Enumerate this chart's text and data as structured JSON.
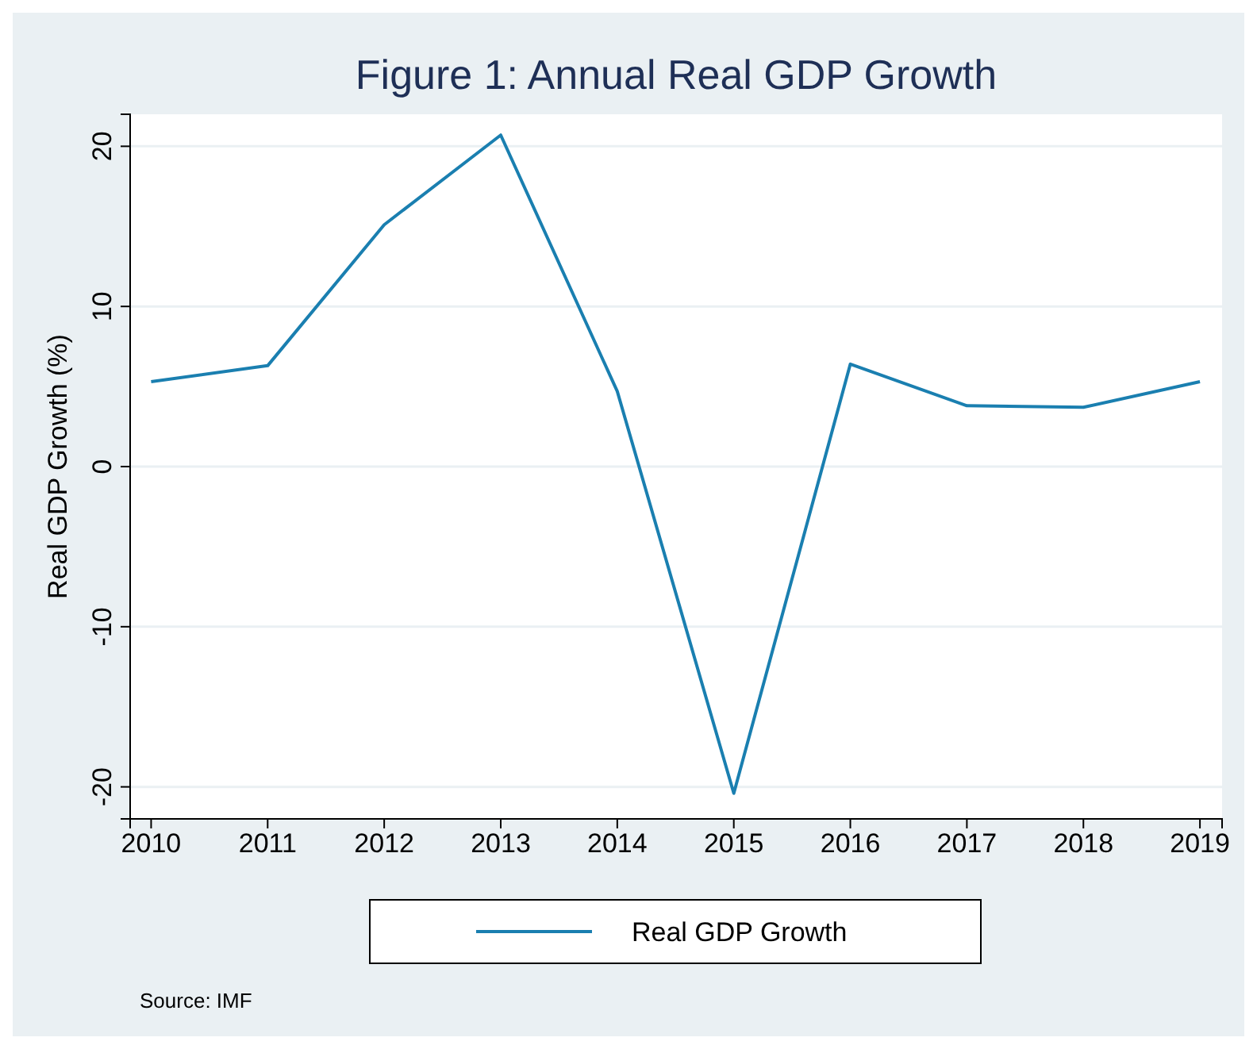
{
  "chart_data": {
    "type": "line",
    "title": "Figure 1: Annual Real GDP Growth",
    "ylabel": "Real GDP Growth (%)",
    "x": [
      2010,
      2011,
      2012,
      2013,
      2014,
      2015,
      2016,
      2017,
      2018,
      2019
    ],
    "series": [
      {
        "name": "Real GDP Growth",
        "color": "#1a7fb0",
        "values": [
          5.3,
          6.3,
          15.1,
          20.7,
          4.7,
          -20.4,
          6.4,
          3.8,
          3.7,
          5.3
        ]
      }
    ],
    "xlim": [
      2009.82,
      2019.19
    ],
    "xticks": [
      2010,
      2011,
      2012,
      2013,
      2014,
      2015,
      2016,
      2017,
      2018,
      2019
    ],
    "ylim": [
      -22,
      22
    ],
    "yticks": [
      -20,
      -10,
      0,
      10,
      20
    ],
    "grid": "y",
    "legend": "bottom",
    "marker": "none",
    "line_style": "solid",
    "annotations": [
      "Source: IMF"
    ]
  }
}
